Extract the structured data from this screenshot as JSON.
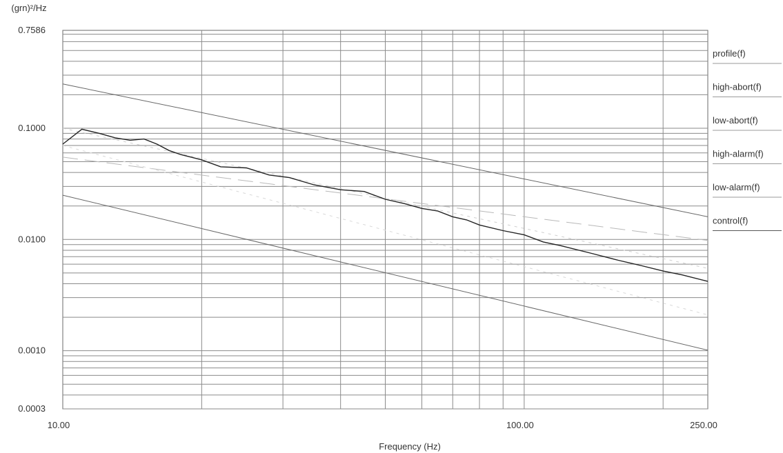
{
  "chart_data": {
    "type": "line",
    "xlabel": "Frequency (Hz)",
    "ylabel": "(grn)²/Hz",
    "x_scale": "log",
    "y_scale": "log",
    "xlim": [
      10,
      250
    ],
    "ylim": [
      0.0003,
      0.7586
    ],
    "x_tick_labels": [
      {
        "value": 10,
        "label": "10.00"
      },
      {
        "value": 100,
        "label": "100.00"
      },
      {
        "value": 250,
        "label": "250.00"
      }
    ],
    "y_tick_labels": [
      {
        "value": 0.7586,
        "label": "0.7586"
      },
      {
        "value": 0.1,
        "label": "0.1000"
      },
      {
        "value": 0.01,
        "label": "0.0100"
      },
      {
        "value": 0.001,
        "label": "0.0010"
      },
      {
        "value": 0.0003,
        "label": "0.0003"
      }
    ],
    "grid": true,
    "legend_position": "right",
    "legend": [
      "profile(f)",
      "high-abort(f)",
      "low-abort(f)",
      "high-alarm(f)",
      "low-alarm(f)",
      "control(f)"
    ],
    "series": [
      {
        "name": "high-abort(f)",
        "style": "solid",
        "color": "#666666",
        "x": [
          10,
          250
        ],
        "y": [
          0.25,
          0.016
        ]
      },
      {
        "name": "high-alarm(f)",
        "style": "dashed",
        "color": "#b8b8b8",
        "x": [
          10,
          250
        ],
        "y": [
          0.055,
          0.0098
        ]
      },
      {
        "name": "profile(f)",
        "style": "dotted",
        "color": "#cfcfcf",
        "x": [
          10,
          250
        ],
        "y": [
          0.1,
          0.0055
        ]
      },
      {
        "name": "low-alarm(f)",
        "style": "dotted",
        "color": "#d8d8d8",
        "x": [
          10,
          250
        ],
        "y": [
          0.07,
          0.0021
        ]
      },
      {
        "name": "low-abort(f)",
        "style": "solid",
        "color": "#666666",
        "x": [
          10,
          250
        ],
        "y": [
          0.025,
          0.00101
        ]
      },
      {
        "name": "control(f)",
        "style": "solid",
        "color": "#222222",
        "x": [
          10,
          11,
          12,
          13,
          14,
          15,
          16,
          17,
          18,
          20,
          22,
          25,
          28,
          31,
          35,
          40,
          45,
          50,
          55,
          60,
          65,
          70,
          75,
          80,
          90,
          100,
          110,
          120,
          140,
          160,
          180,
          200,
          220,
          250
        ],
        "y": [
          0.072,
          0.098,
          0.09,
          0.082,
          0.078,
          0.08,
          0.072,
          0.063,
          0.058,
          0.052,
          0.045,
          0.044,
          0.038,
          0.036,
          0.031,
          0.028,
          0.027,
          0.023,
          0.021,
          0.019,
          0.018,
          0.016,
          0.015,
          0.0135,
          0.012,
          0.011,
          0.0095,
          0.0088,
          0.0075,
          0.0065,
          0.0058,
          0.0052,
          0.0048,
          0.0042
        ]
      }
    ]
  }
}
